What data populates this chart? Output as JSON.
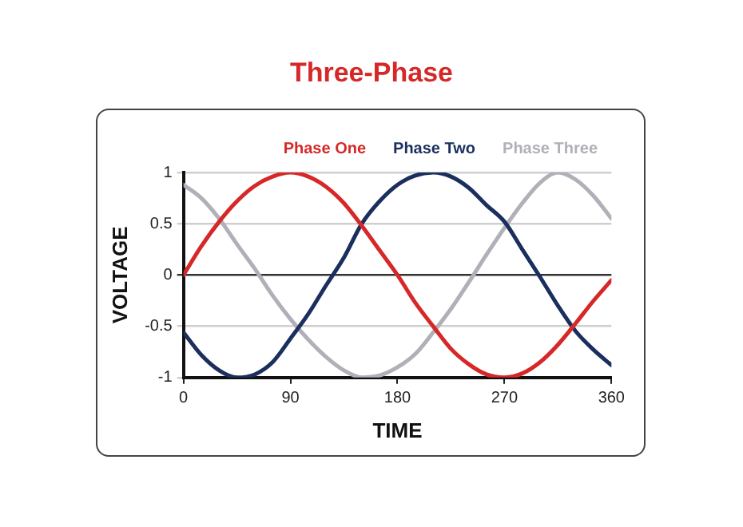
{
  "chart_data": {
    "type": "line",
    "title": "Three-Phase",
    "xlabel": "TIME",
    "ylabel": "VOLTAGE",
    "x": [
      0,
      15,
      30,
      45,
      60,
      75,
      90,
      105,
      120,
      135,
      150,
      165,
      180,
      195,
      210,
      225,
      240,
      255,
      270,
      285,
      300,
      315,
      330,
      345,
      360
    ],
    "series": [
      {
        "name": "Phase One",
        "color": "#d62828",
        "values": [
          0,
          0.28,
          0.52,
          0.72,
          0.87,
          0.96,
          1.0,
          0.96,
          0.86,
          0.7,
          0.48,
          0.24,
          0,
          -0.27,
          -0.5,
          -0.72,
          -0.87,
          -0.97,
          -1.0,
          -0.96,
          -0.85,
          -0.68,
          -0.47,
          -0.25,
          -0.05
        ]
      },
      {
        "name": "Phase Two",
        "color": "#1b2f5e",
        "values": [
          -0.56,
          -0.78,
          -0.93,
          -1.0,
          -0.97,
          -0.85,
          -0.62,
          -0.38,
          -0.1,
          0.17,
          0.5,
          0.72,
          0.88,
          0.97,
          1.0,
          0.96,
          0.85,
          0.68,
          0.52,
          0.25,
          -0.02,
          -0.3,
          -0.55,
          -0.73,
          -0.88
        ]
      },
      {
        "name": "Phase Three",
        "color": "#b0b0b8",
        "values": [
          0.88,
          0.75,
          0.55,
          0.3,
          0.06,
          -0.2,
          -0.43,
          -0.63,
          -0.8,
          -0.93,
          -1.0,
          -0.98,
          -0.9,
          -0.77,
          -0.56,
          -0.33,
          -0.07,
          0.2,
          0.46,
          0.7,
          0.9,
          1.0,
          0.93,
          0.77,
          0.55
        ]
      }
    ],
    "xlim": [
      0,
      360
    ],
    "xticks": [
      0,
      90,
      180,
      270,
      360
    ],
    "ylim": [
      -1,
      1
    ],
    "yticks": [
      -1,
      -0.5,
      0,
      0.5,
      1
    ],
    "grid": "y",
    "legend": "top",
    "marker": "none",
    "line_style": "solid"
  }
}
